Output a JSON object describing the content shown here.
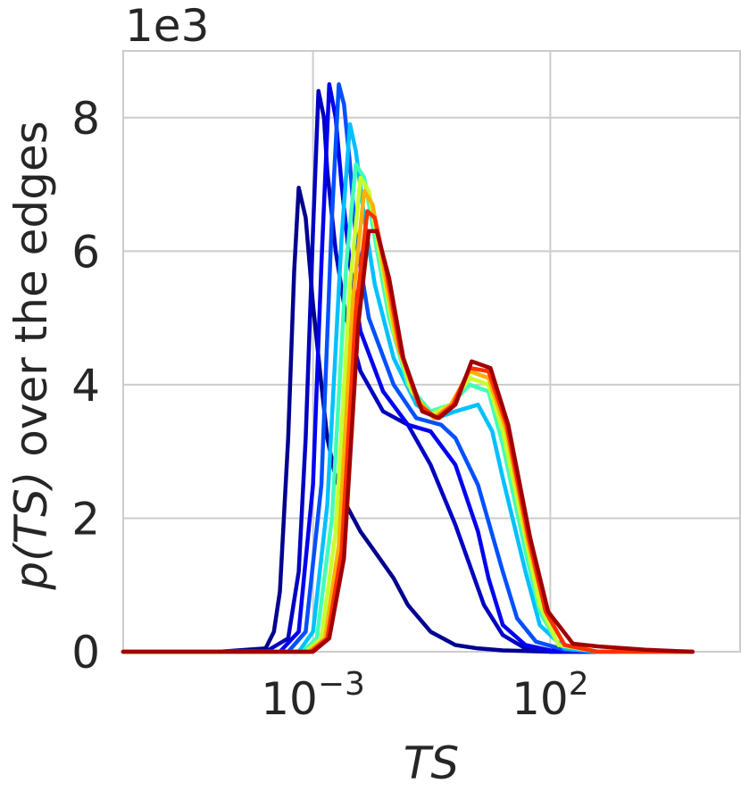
{
  "chart_data": {
    "type": "line",
    "title": "",
    "xlabel": "TS",
    "ylabel_main": "over the edges",
    "ylabel_func": "p(TS)",
    "y_offset_text": "1e3",
    "x_scale": "log10",
    "xlim": [
      1e-07,
      1000000.0
    ],
    "ylim": [
      0,
      9
    ],
    "x_ticks": [
      {
        "value": 0.001,
        "base": "10",
        "exp": "−3"
      },
      {
        "value": 100,
        "base": "10",
        "exp": "2"
      }
    ],
    "y_ticks": [
      {
        "value": 0,
        "label": "0"
      },
      {
        "value": 2,
        "label": "2"
      },
      {
        "value": 4,
        "label": "4"
      },
      {
        "value": 6,
        "label": "6"
      },
      {
        "value": 8,
        "label": "8"
      }
    ],
    "grid": true,
    "legend": "none",
    "colormap": "jet",
    "series": [
      {
        "color": "#00008f",
        "x": [
          1e-07,
          1e-05,
          0.0001,
          0.00015,
          0.0002,
          0.0003,
          0.0004,
          0.0005,
          0.0007,
          0.001,
          0.0015,
          0.002,
          0.003,
          0.005,
          0.01,
          0.02,
          0.05,
          0.1,
          0.3,
          1,
          3,
          10,
          100,
          1000,
          100000.0
        ],
        "values": [
          0,
          0,
          0.05,
          0.3,
          0.9,
          3.2,
          5.7,
          6.95,
          6.5,
          5.2,
          4.0,
          3.2,
          2.6,
          2.2,
          1.8,
          1.5,
          1.1,
          0.7,
          0.3,
          0.1,
          0.05,
          0.02,
          0,
          0,
          0
        ]
      },
      {
        "color": "#0000c0",
        "x": [
          1e-07,
          0.0001,
          0.0003,
          0.0005,
          0.0007,
          0.001,
          0.0013,
          0.0017,
          0.002,
          0.003,
          0.005,
          0.01,
          0.03,
          0.1,
          0.3,
          1,
          2,
          4,
          10,
          30,
          100,
          1000,
          100000.0
        ],
        "values": [
          0,
          0,
          0.2,
          1.2,
          3.2,
          6.3,
          8.4,
          8.0,
          7.2,
          6.0,
          5.0,
          4.2,
          3.6,
          3.4,
          2.8,
          1.9,
          1.3,
          0.7,
          0.25,
          0.05,
          0,
          0,
          0
        ]
      },
      {
        "color": "#0000f0",
        "x": [
          1e-07,
          0.0002,
          0.0005,
          0.001,
          0.0015,
          0.0022,
          0.003,
          0.004,
          0.006,
          0.01,
          0.03,
          0.1,
          0.3,
          1,
          3,
          5,
          10,
          30,
          100,
          1000,
          100000.0
        ],
        "values": [
          0,
          0,
          0.3,
          2.5,
          5.8,
          8.5,
          8.0,
          7.0,
          5.8,
          4.8,
          3.9,
          3.4,
          3.3,
          2.8,
          1.8,
          1.1,
          0.4,
          0.1,
          0.02,
          0,
          0
        ]
      },
      {
        "color": "#0050ff",
        "x": [
          1e-07,
          0.0003,
          0.0007,
          0.0015,
          0.0025,
          0.0035,
          0.0045,
          0.006,
          0.008,
          0.015,
          0.05,
          0.15,
          0.5,
          1,
          3,
          10,
          20,
          50,
          200,
          1000,
          100000.0
        ],
        "values": [
          0,
          0,
          0.3,
          2.5,
          6.5,
          8.5,
          8.2,
          7.3,
          6.2,
          5.0,
          4.0,
          3.5,
          3.4,
          3.2,
          2.5,
          1.2,
          0.5,
          0.15,
          0.03,
          0,
          0
        ]
      },
      {
        "color": "#00c0ff",
        "x": [
          1e-07,
          0.0005,
          0.001,
          0.002,
          0.004,
          0.006,
          0.008,
          0.012,
          0.02,
          0.05,
          0.15,
          0.4,
          1,
          3,
          6,
          10,
          30,
          60,
          200,
          1000,
          100000.0
        ],
        "values": [
          0,
          0,
          0.3,
          2.2,
          6.2,
          7.9,
          7.5,
          6.5,
          5.5,
          4.4,
          3.7,
          3.5,
          3.6,
          3.7,
          3.3,
          2.6,
          1.2,
          0.4,
          0.05,
          0,
          0
        ]
      },
      {
        "color": "#40ffb8",
        "x": [
          1e-07,
          0.0006,
          0.0012,
          0.0025,
          0.005,
          0.008,
          0.012,
          0.02,
          0.04,
          0.1,
          0.3,
          0.8,
          2,
          5,
          10,
          30,
          60,
          150,
          1000,
          100000.0
        ],
        "values": [
          0,
          0,
          0.2,
          2.0,
          5.8,
          7.3,
          7.1,
          6.2,
          5.0,
          4.0,
          3.6,
          3.7,
          4.0,
          3.9,
          3.1,
          1.5,
          0.6,
          0.1,
          0,
          0
        ]
      },
      {
        "color": "#c8ff30",
        "x": [
          1e-07,
          0.0007,
          0.0015,
          0.003,
          0.006,
          0.01,
          0.015,
          0.025,
          0.05,
          0.12,
          0.3,
          0.8,
          2,
          5,
          10,
          30,
          60,
          150,
          1000,
          100000.0
        ],
        "values": [
          0,
          0,
          0.2,
          1.8,
          5.5,
          7.1,
          6.9,
          6.0,
          4.8,
          3.9,
          3.55,
          3.7,
          4.1,
          4.0,
          3.3,
          1.7,
          0.7,
          0.1,
          0,
          0
        ]
      },
      {
        "color": "#ffb000",
        "x": [
          1e-07,
          0.0008,
          0.0018,
          0.0035,
          0.007,
          0.012,
          0.018,
          0.03,
          0.06,
          0.15,
          0.35,
          0.8,
          2,
          5,
          12,
          35,
          80,
          200,
          1000,
          100000.0
        ],
        "values": [
          0,
          0,
          0.2,
          1.6,
          5.3,
          6.9,
          6.7,
          5.8,
          4.6,
          3.8,
          3.5,
          3.7,
          4.2,
          4.1,
          3.3,
          1.6,
          0.6,
          0.1,
          0,
          0
        ]
      },
      {
        "color": "#ff3000",
        "x": [
          1e-07,
          0.0009,
          0.002,
          0.004,
          0.008,
          0.014,
          0.02,
          0.035,
          0.07,
          0.17,
          0.4,
          0.9,
          2,
          5,
          12,
          35,
          80,
          200,
          1000,
          100000.0
        ],
        "values": [
          0,
          0,
          0.2,
          1.5,
          5.1,
          6.6,
          6.5,
          5.7,
          4.5,
          3.7,
          3.5,
          3.7,
          4.25,
          4.2,
          3.4,
          1.7,
          0.6,
          0.1,
          0,
          0
        ]
      },
      {
        "color": "#a00000",
        "x": [
          1e-07,
          0.001,
          0.0022,
          0.0045,
          0.009,
          0.015,
          0.022,
          0.04,
          0.08,
          0.2,
          0.45,
          1,
          2.2,
          5.5,
          13,
          38,
          90,
          300,
          1000,
          10000.0,
          100000.0
        ],
        "values": [
          0,
          0,
          0.2,
          1.4,
          4.9,
          6.3,
          6.3,
          5.6,
          4.4,
          3.6,
          3.5,
          3.7,
          4.35,
          4.25,
          3.4,
          1.7,
          0.6,
          0.12,
          0.08,
          0.03,
          0
        ]
      }
    ]
  }
}
